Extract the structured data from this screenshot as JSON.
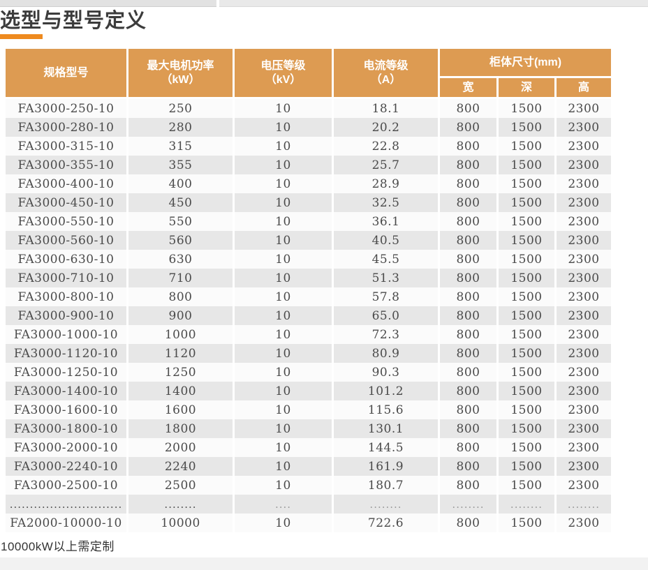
{
  "page": {
    "title": "选型与型号定义",
    "footer_note": "10000kW以上需定制"
  },
  "colors": {
    "header_bg": "#DD9B52",
    "title_underline": "#EE8A1F",
    "row_even_bg": "#E7E7E7",
    "row_odd_bg": "#FBFBFB",
    "body_text": "#4A4A4A",
    "header_text": "#FFFFFF"
  },
  "table": {
    "headers": {
      "model": "规格型号",
      "max_power_line1": "最大电机功率",
      "max_power_line2": "（kW）",
      "voltage_line1": "电压等级",
      "voltage_line2": "（kV）",
      "current_line1": "电流等级",
      "current_line2": "（A）",
      "cabinet_size": "柜体尺寸(mm)",
      "width": "宽",
      "depth": "深",
      "height": "高"
    },
    "rows": [
      [
        "FA3000-250-10",
        "250",
        "10",
        "18.1",
        "800",
        "1500",
        "2300"
      ],
      [
        "FA3000-280-10",
        "280",
        "10",
        "20.2",
        "800",
        "1500",
        "2300"
      ],
      [
        "FA3000-315-10",
        "315",
        "10",
        "22.8",
        "800",
        "1500",
        "2300"
      ],
      [
        "FA3000-355-10",
        "355",
        "10",
        "25.7",
        "800",
        "1500",
        "2300"
      ],
      [
        "FA3000-400-10",
        "400",
        "10",
        "28.9",
        "800",
        "1500",
        "2300"
      ],
      [
        "FA3000-450-10",
        "450",
        "10",
        "32.5",
        "800",
        "1500",
        "2300"
      ],
      [
        "FA3000-550-10",
        "550",
        "10",
        "36.1",
        "800",
        "1500",
        "2300"
      ],
      [
        "FA3000-560-10",
        "560",
        "10",
        "40.5",
        "800",
        "1500",
        "2300"
      ],
      [
        "FA3000-630-10",
        "630",
        "10",
        "45.5",
        "800",
        "1500",
        "2300"
      ],
      [
        "FA3000-710-10",
        "710",
        "10",
        "51.3",
        "800",
        "1500",
        "2300"
      ],
      [
        "FA3000-800-10",
        "800",
        "10",
        "57.8",
        "800",
        "1500",
        "2300"
      ],
      [
        "FA3000-900-10",
        "900",
        "10",
        "65.0",
        "800",
        "1500",
        "2300"
      ],
      [
        "FA3000-1000-10",
        "1000",
        "10",
        "72.3",
        "800",
        "1500",
        "2300"
      ],
      [
        "FA3000-1120-10",
        "1120",
        "10",
        "80.9",
        "800",
        "1500",
        "2300"
      ],
      [
        "FA3000-1250-10",
        "1250",
        "10",
        "90.3",
        "800",
        "1500",
        "2300"
      ],
      [
        "FA3000-1400-10",
        "1400",
        "10",
        "101.2",
        "800",
        "1500",
        "2300"
      ],
      [
        "FA3000-1600-10",
        "1600",
        "10",
        "115.6",
        "800",
        "1500",
        "2300"
      ],
      [
        "FA3000-1800-10",
        "1800",
        "10",
        "130.1",
        "800",
        "1500",
        "2300"
      ],
      [
        "FA3000-2000-10",
        "2000",
        "10",
        "144.5",
        "800",
        "1500",
        "2300"
      ],
      [
        "FA3000-2240-10",
        "2240",
        "10",
        "161.9",
        "800",
        "1500",
        "2300"
      ],
      [
        "FA3000-2500-10",
        "2500",
        "10",
        "180.7",
        "800",
        "1500",
        "2300"
      ],
      [
        "............................",
        "........",
        "....",
        "........",
        "........",
        "........",
        "........"
      ],
      [
        "FA2000-10000-10",
        "10000",
        "10",
        "722.6",
        "800",
        "1500",
        "2300"
      ]
    ]
  }
}
